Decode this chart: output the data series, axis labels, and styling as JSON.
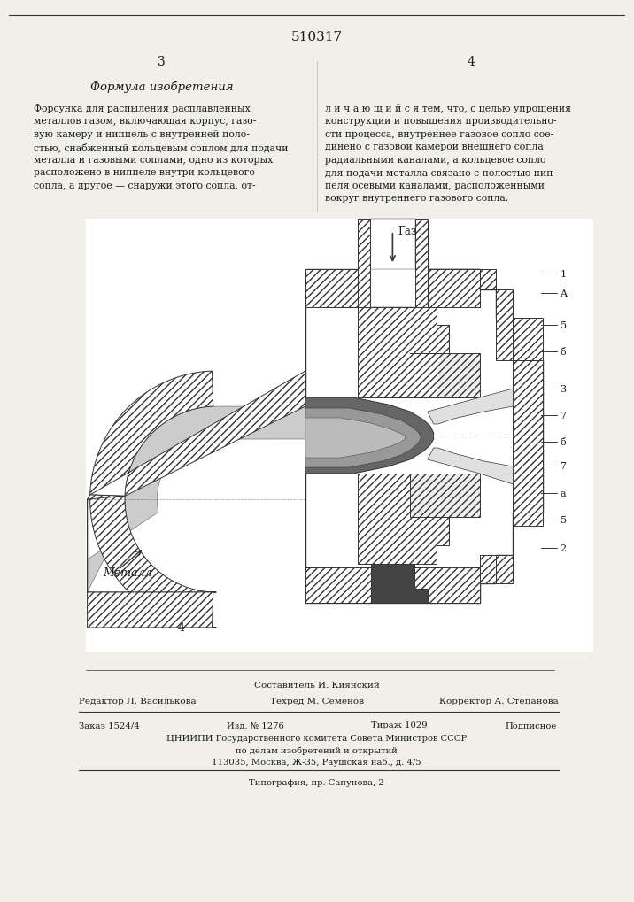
{
  "patent_number": "510317",
  "page_left": "3",
  "page_right": "4",
  "section_title": "Формула изобретения",
  "gas_label": "Газ",
  "metal_label": "Металл",
  "fig_number": "4",
  "composer": "Составитель И. Киянский",
  "editor": "Редактор Л. Василькова",
  "techred": "Техред М. Семенов",
  "corrector": "Корректор А. Степанова",
  "order": "Заказ 1524/4",
  "izdanie": "Изд. № 1276",
  "tirazh": "Тираж 1029",
  "podpisnoe": "Подписное",
  "tsniip1": "ЦНИИПИ Государственного комитета Совета Министров СССР",
  "tsniip2": "по делам изобретений и открытий",
  "tsniip3": "113035, Москва, Ж-35, Раушская наб., д. 4/5",
  "tipografia": "Типография, пр. Сапунова, 2",
  "bg_color": "#f0efea",
  "text_color": "#1a1a1a",
  "line_color": "#333333",
  "left_body": [
    "Форсунка для распыления расплавленных",
    "металлов газом, включающая корпус, газо-",
    "вую камеру и ниппель с внутренней поло-",
    "стью, снабженный кольцевым соплом для подачи",
    "металла и газовыми соплами, одно из которых",
    "расположено в ниппеле внутри кольцевого",
    "сопла, а другое — снаружи этого сопла, от-"
  ],
  "right_body": [
    "л и ч а ю щ и й с я тем, что, с целью упрощения",
    "конструкции и повышения производительно-",
    "сти процесса, внутреннее газовое сопло сое-",
    "динено с газовой камерой внешнего сопла",
    "радиальными каналами, а кольцевое сопло",
    "для подачи металла связано с полостью нип-",
    "пеля осевыми каналами, расположенными",
    "вокруг внутреннего газового сопла."
  ]
}
